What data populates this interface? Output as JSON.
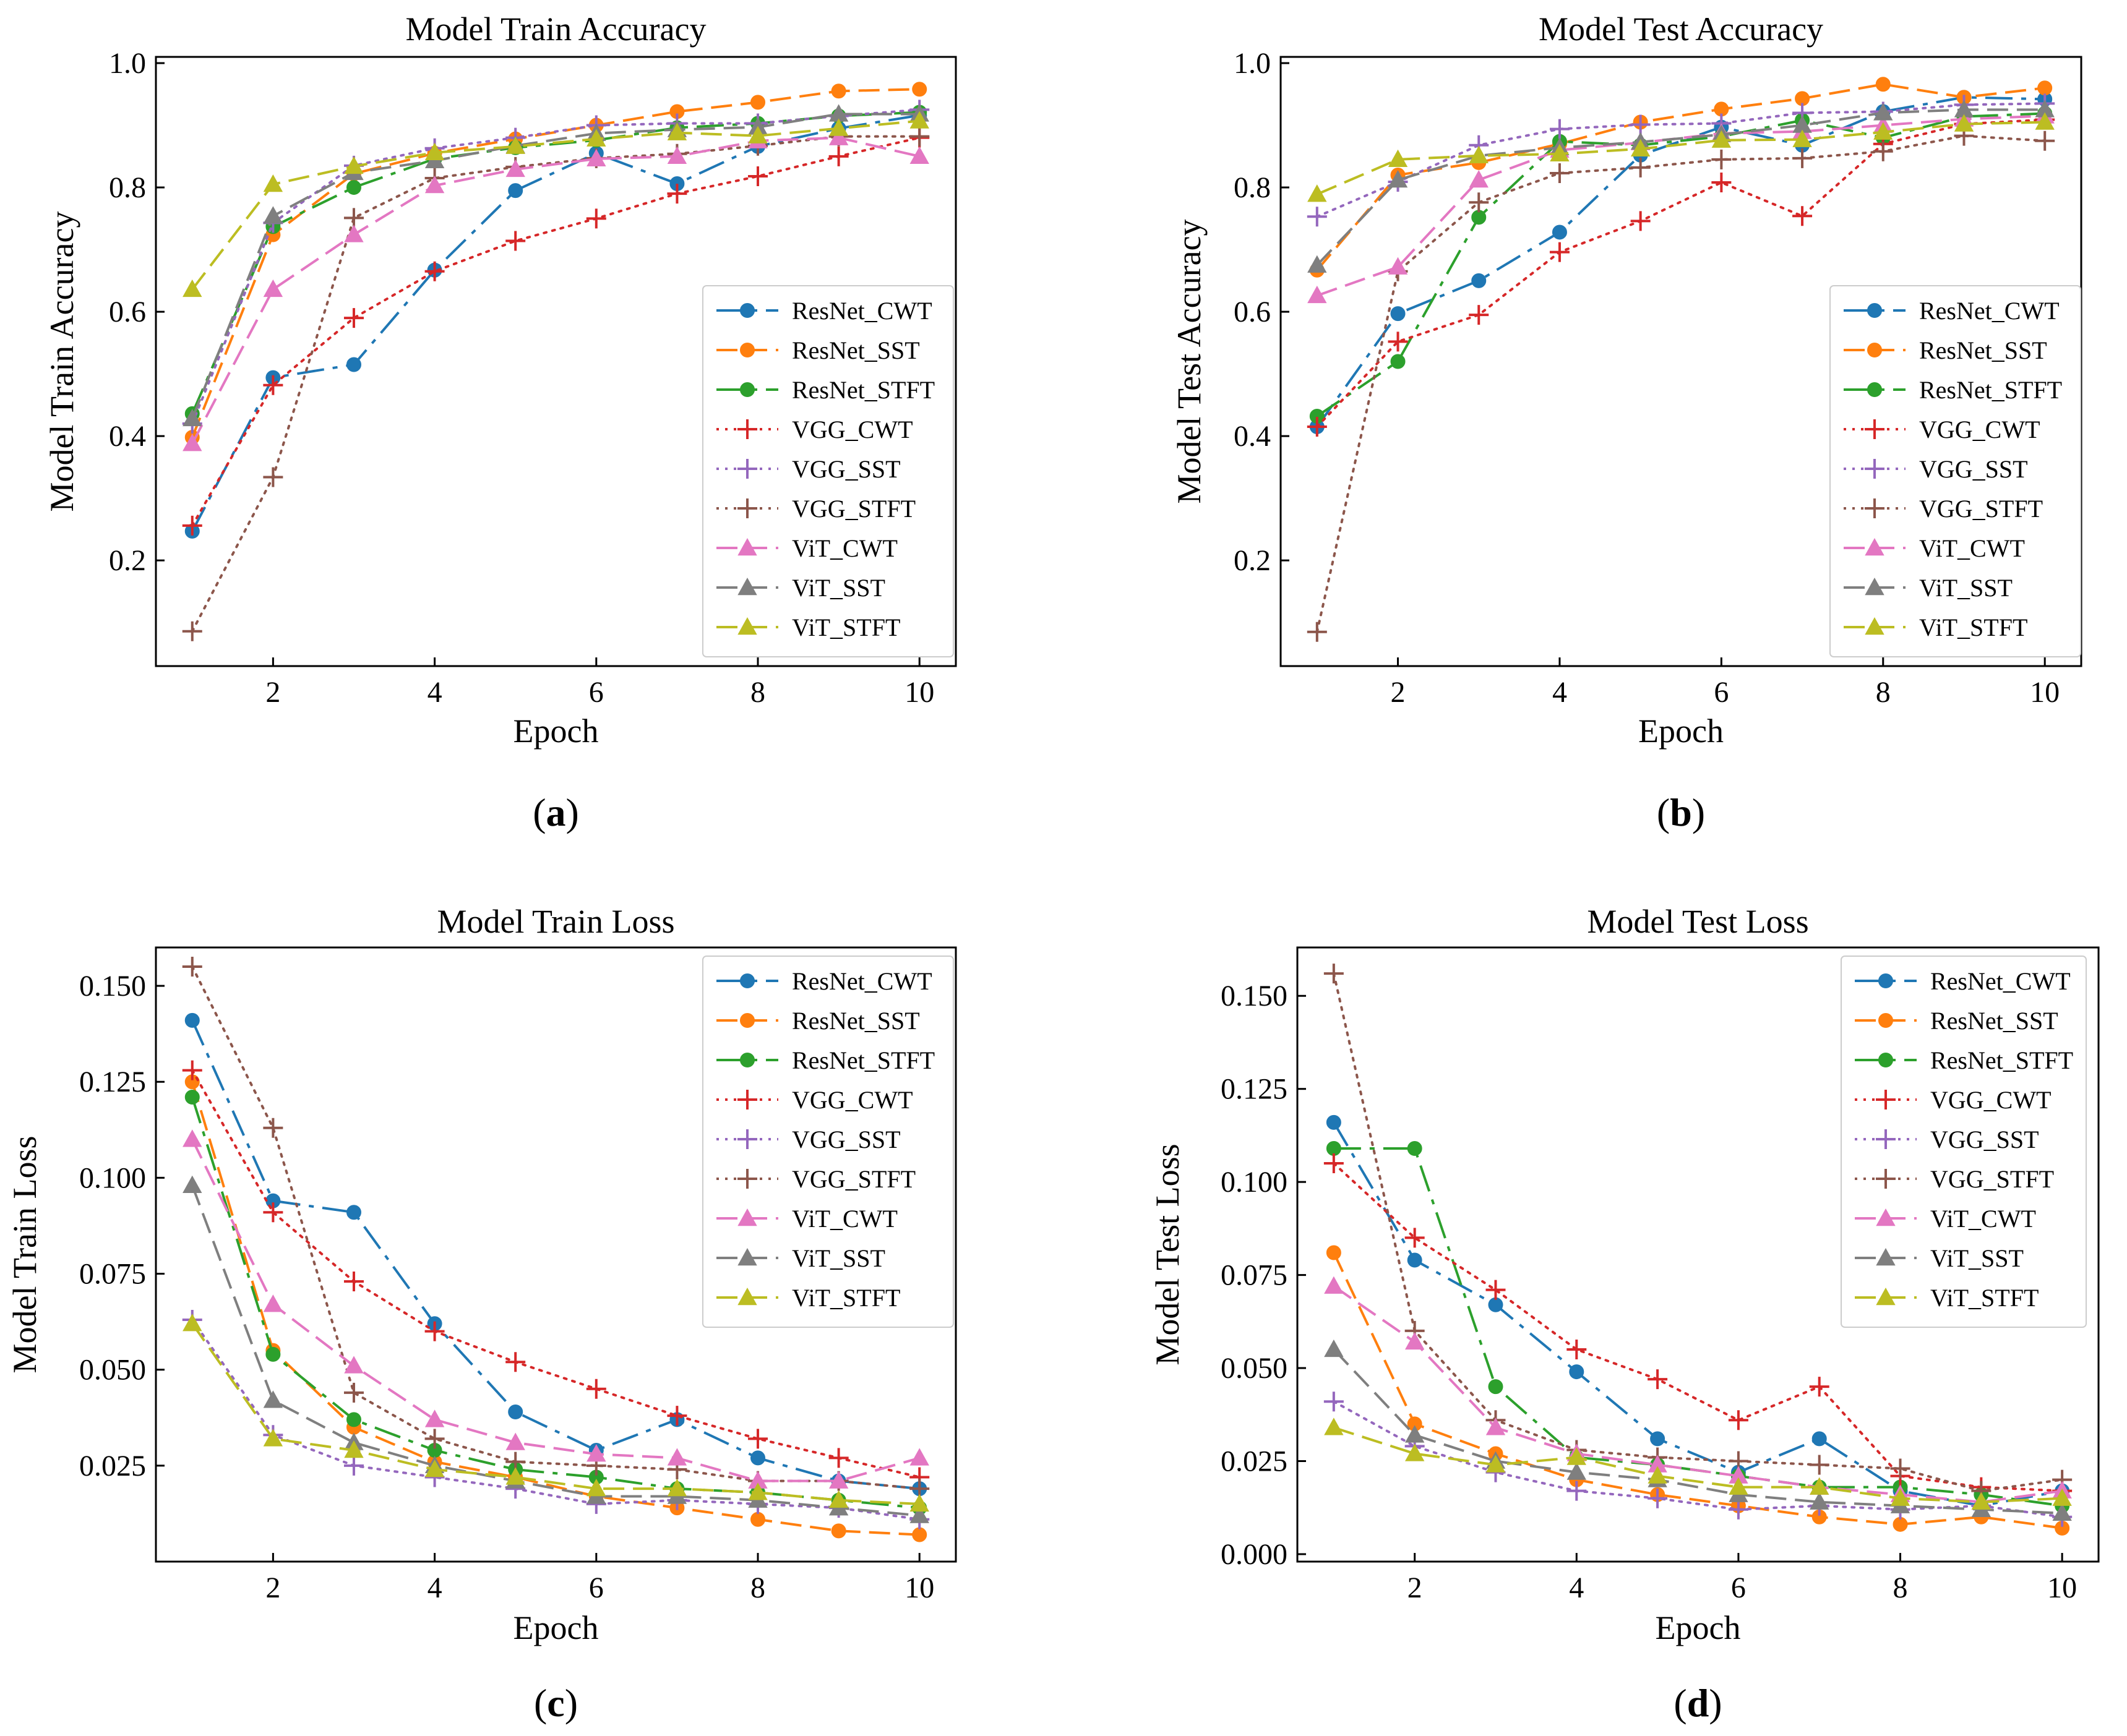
{
  "colors": {
    "ResNet_CWT": "#1f77b4",
    "ResNet_SST": "#ff7f0e",
    "ResNet_STFT": "#2ca02c",
    "VGG_CWT": "#d62728",
    "VGG_SST": "#9467bd",
    "VGG_STFT": "#8c564b",
    "ViT_CWT": "#e377c2",
    "ViT_SST": "#7f7f7f",
    "ViT_STFT": "#bcbd22"
  },
  "chart_data": [
    {
      "type": "line",
      "panel": "a",
      "caption": "(a)",
      "caption_letter": "a",
      "title": "Model Train Accuracy",
      "xlabel": "Epoch",
      "ylabel": "Model Train Accuracy",
      "xlim": [
        0.55,
        10.45
      ],
      "ylim": [
        0.03,
        1.01
      ],
      "xticks": [
        2,
        4,
        6,
        8,
        10
      ],
      "yticks": [
        0.2,
        0.4,
        0.6,
        0.8,
        1.0
      ],
      "ytick_labels": [
        "0.2",
        "0.4",
        "0.6",
        "0.8",
        "1.0"
      ],
      "legend_position": "center-right",
      "x": [
        1,
        2,
        3,
        4,
        5,
        6,
        7,
        8,
        9,
        10
      ],
      "series": [
        {
          "name": "ResNet_CWT",
          "values": [
            0.247,
            0.494,
            0.515,
            0.667,
            0.795,
            0.855,
            0.806,
            0.866,
            0.895,
            0.916
          ]
        },
        {
          "name": "ResNet_SST",
          "values": [
            0.398,
            0.724,
            0.822,
            0.855,
            0.878,
            0.9,
            0.922,
            0.937,
            0.955,
            0.958
          ]
        },
        {
          "name": "ResNet_STFT",
          "values": [
            0.436,
            0.737,
            0.8,
            0.846,
            0.864,
            0.876,
            0.896,
            0.903,
            0.915,
            0.921
          ]
        },
        {
          "name": "VGG_CWT",
          "values": [
            0.256,
            0.482,
            0.59,
            0.665,
            0.714,
            0.75,
            0.79,
            0.818,
            0.85,
            0.88
          ]
        },
        {
          "name": "VGG_SST",
          "values": [
            0.42,
            0.743,
            0.835,
            0.863,
            0.88,
            0.9,
            0.903,
            0.903,
            0.915,
            0.925
          ]
        },
        {
          "name": "VGG_STFT",
          "values": [
            0.086,
            0.334,
            0.751,
            0.815,
            0.833,
            0.847,
            0.854,
            0.867,
            0.882,
            0.882
          ]
        },
        {
          "name": "ViT_CWT",
          "values": [
            0.388,
            0.636,
            0.724,
            0.803,
            0.829,
            0.846,
            0.85,
            0.875,
            0.88,
            0.85
          ]
        },
        {
          "name": "ViT_SST",
          "values": [
            0.428,
            0.754,
            0.824,
            0.843,
            0.867,
            0.887,
            0.893,
            0.897,
            0.918,
            0.918
          ]
        },
        {
          "name": "ViT_STFT",
          "values": [
            0.636,
            0.805,
            0.834,
            0.856,
            0.866,
            0.878,
            0.888,
            0.883,
            0.895,
            0.907
          ]
        }
      ]
    },
    {
      "type": "line",
      "panel": "b",
      "caption": "(b)",
      "caption_letter": "b",
      "title": "Model Test Accuracy",
      "xlabel": "Epoch",
      "ylabel": "Model Test Accuracy",
      "xlim": [
        0.55,
        10.45
      ],
      "ylim": [
        0.03,
        1.01
      ],
      "xticks": [
        2,
        4,
        6,
        8,
        10
      ],
      "yticks": [
        0.2,
        0.4,
        0.6,
        0.8,
        1.0
      ],
      "ytick_labels": [
        "0.2",
        "0.4",
        "0.6",
        "0.8",
        "1.0"
      ],
      "legend_position": "center-right",
      "x": [
        1,
        2,
        3,
        4,
        5,
        6,
        7,
        8,
        9,
        10
      ],
      "series": [
        {
          "name": "ResNet_CWT",
          "values": [
            0.415,
            0.597,
            0.65,
            0.728,
            0.852,
            0.897,
            0.868,
            0.922,
            0.945,
            0.942
          ]
        },
        {
          "name": "ResNet_SST",
          "values": [
            0.667,
            0.82,
            0.84,
            0.87,
            0.905,
            0.926,
            0.943,
            0.966,
            0.945,
            0.96
          ]
        },
        {
          "name": "ResNet_STFT",
          "values": [
            0.432,
            0.52,
            0.752,
            0.874,
            0.868,
            0.882,
            0.908,
            0.88,
            0.914,
            0.919
          ]
        },
        {
          "name": "VGG_CWT",
          "values": [
            0.415,
            0.552,
            0.595,
            0.696,
            0.746,
            0.808,
            0.754,
            0.87,
            0.902,
            0.909
          ]
        },
        {
          "name": "VGG_SST",
          "values": [
            0.753,
            0.809,
            0.868,
            0.894,
            0.901,
            0.903,
            0.92,
            0.922,
            0.933,
            0.935
          ]
        },
        {
          "name": "VGG_STFT",
          "values": [
            0.085,
            0.665,
            0.776,
            0.823,
            0.832,
            0.845,
            0.847,
            0.858,
            0.883,
            0.875
          ]
        },
        {
          "name": "ViT_CWT",
          "values": [
            0.626,
            0.672,
            0.812,
            0.86,
            0.872,
            0.887,
            0.89,
            0.9,
            0.91,
            0.915
          ]
        },
        {
          "name": "ViT_SST",
          "values": [
            0.675,
            0.812,
            0.851,
            0.864,
            0.873,
            0.885,
            0.9,
            0.92,
            0.925,
            0.925
          ]
        },
        {
          "name": "ViT_STFT",
          "values": [
            0.789,
            0.845,
            0.851,
            0.854,
            0.862,
            0.876,
            0.877,
            0.889,
            0.902,
            0.905
          ]
        }
      ]
    },
    {
      "type": "line",
      "panel": "c",
      "caption": "(c)",
      "caption_letter": "c",
      "title": "Model Train Loss",
      "xlabel": "Epoch",
      "ylabel": "Model Train Loss",
      "xlim": [
        0.55,
        10.45
      ],
      "ylim": [
        0.0,
        0.16
      ],
      "xticks": [
        2,
        4,
        6,
        8,
        10
      ],
      "yticks": [
        0.025,
        0.05,
        0.075,
        0.1,
        0.125,
        0.15
      ],
      "ytick_labels": [
        "0.025",
        "0.050",
        "0.075",
        "0.100",
        "0.125",
        "0.150"
      ],
      "legend_position": "upper-right",
      "x": [
        1,
        2,
        3,
        4,
        5,
        6,
        7,
        8,
        9,
        10
      ],
      "series": [
        {
          "name": "ResNet_CWT",
          "values": [
            0.141,
            0.094,
            0.091,
            0.062,
            0.039,
            0.029,
            0.037,
            0.027,
            0.021,
            0.019
          ]
        },
        {
          "name": "ResNet_SST",
          "values": [
            0.125,
            0.055,
            0.035,
            0.026,
            0.022,
            0.017,
            0.014,
            0.011,
            0.008,
            0.007
          ]
        },
        {
          "name": "ResNet_STFT",
          "values": [
            0.121,
            0.054,
            0.037,
            0.029,
            0.024,
            0.022,
            0.019,
            0.018,
            0.016,
            0.014
          ]
        },
        {
          "name": "VGG_CWT",
          "values": [
            0.128,
            0.091,
            0.073,
            0.06,
            0.052,
            0.045,
            0.038,
            0.032,
            0.027,
            0.022
          ]
        },
        {
          "name": "VGG_SST",
          "values": [
            0.063,
            0.033,
            0.025,
            0.022,
            0.019,
            0.015,
            0.016,
            0.015,
            0.014,
            0.011
          ]
        },
        {
          "name": "VGG_STFT",
          "values": [
            0.155,
            0.113,
            0.044,
            0.032,
            0.026,
            0.025,
            0.024,
            0.021,
            0.021,
            0.019
          ]
        },
        {
          "name": "ViT_CWT",
          "values": [
            0.11,
            0.067,
            0.051,
            0.037,
            0.031,
            0.028,
            0.027,
            0.021,
            0.021,
            0.027
          ]
        },
        {
          "name": "ViT_SST",
          "values": [
            0.098,
            0.042,
            0.031,
            0.025,
            0.021,
            0.017,
            0.017,
            0.016,
            0.014,
            0.012
          ]
        },
        {
          "name": "ViT_STFT",
          "values": [
            0.062,
            0.032,
            0.029,
            0.024,
            0.022,
            0.019,
            0.019,
            0.018,
            0.016,
            0.015
          ]
        }
      ]
    },
    {
      "type": "line",
      "panel": "d",
      "caption": "(d)",
      "caption_letter": "d",
      "title": "Model Test Loss",
      "xlabel": "Epoch",
      "ylabel": "Model Test Loss",
      "xlim": [
        0.55,
        10.45
      ],
      "ylim": [
        -0.002,
        0.163
      ],
      "xticks": [
        2,
        4,
        6,
        8,
        10
      ],
      "yticks": [
        0.0,
        0.025,
        0.05,
        0.075,
        0.1,
        0.125,
        0.15
      ],
      "ytick_labels": [
        "0.000",
        "0.025",
        "0.050",
        "0.075",
        "0.100",
        "0.125",
        "0.150"
      ],
      "legend_position": "upper-right",
      "x": [
        1,
        2,
        3,
        4,
        5,
        6,
        7,
        8,
        9,
        10
      ],
      "series": [
        {
          "name": "ResNet_CWT",
          "values": [
            0.116,
            0.079,
            0.067,
            0.049,
            0.031,
            0.022,
            0.031,
            0.017,
            0.013,
            0.017
          ]
        },
        {
          "name": "ResNet_SST",
          "values": [
            0.081,
            0.035,
            0.027,
            0.02,
            0.016,
            0.013,
            0.01,
            0.008,
            0.01,
            0.007
          ]
        },
        {
          "name": "ResNet_STFT",
          "values": [
            0.109,
            0.109,
            0.045,
            0.026,
            0.024,
            0.021,
            0.018,
            0.018,
            0.016,
            0.013
          ]
        },
        {
          "name": "VGG_CWT",
          "values": [
            0.105,
            0.085,
            0.071,
            0.055,
            0.047,
            0.036,
            0.045,
            0.021,
            0.018,
            0.017
          ]
        },
        {
          "name": "VGG_SST",
          "values": [
            0.041,
            0.029,
            0.022,
            0.017,
            0.015,
            0.012,
            0.013,
            0.012,
            0.013,
            0.01
          ]
        },
        {
          "name": "VGG_STFT",
          "values": [
            0.156,
            0.06,
            0.036,
            0.028,
            0.026,
            0.025,
            0.024,
            0.023,
            0.017,
            0.02
          ]
        },
        {
          "name": "ViT_CWT",
          "values": [
            0.072,
            0.057,
            0.034,
            0.027,
            0.024,
            0.021,
            0.018,
            0.016,
            0.014,
            0.017
          ]
        },
        {
          "name": "ViT_SST",
          "values": [
            0.055,
            0.032,
            0.025,
            0.022,
            0.02,
            0.016,
            0.014,
            0.013,
            0.012,
            0.011
          ]
        },
        {
          "name": "ViT_STFT",
          "values": [
            0.034,
            0.027,
            0.024,
            0.026,
            0.021,
            0.018,
            0.018,
            0.015,
            0.014,
            0.015
          ]
        }
      ]
    }
  ]
}
